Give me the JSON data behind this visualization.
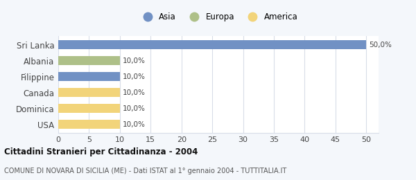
{
  "categories": [
    "Sri Lanka",
    "Albania",
    "Filippine",
    "Canada",
    "Dominica",
    "USA"
  ],
  "values": [
    50.0,
    10.0,
    10.0,
    10.0,
    10.0,
    10.0
  ],
  "colors": [
    "#7191c4",
    "#aec088",
    "#7191c4",
    "#f2d47a",
    "#f2d47a",
    "#f2d47a"
  ],
  "bar_labels": [
    "50,0%",
    "10,0%",
    "10,0%",
    "10,0%",
    "10,0%",
    "10,0%"
  ],
  "legend": [
    {
      "label": "Asia",
      "color": "#7191c4"
    },
    {
      "label": "Europa",
      "color": "#aec088"
    },
    {
      "label": "America",
      "color": "#f2d47a"
    }
  ],
  "xlim": [
    0,
    52
  ],
  "xticks": [
    0,
    5,
    10,
    15,
    20,
    25,
    30,
    35,
    40,
    45,
    50
  ],
  "title": "Cittadini Stranieri per Cittadinanza - 2004",
  "subtitle": "COMUNE DI NOVARA DI SICILIA (ME) - Dati ISTAT al 1° gennaio 2004 - TUTTITALIA.IT",
  "background_color": "#f4f7fb",
  "plot_bg_color": "#ffffff",
  "grid_color": "#d8dde8"
}
